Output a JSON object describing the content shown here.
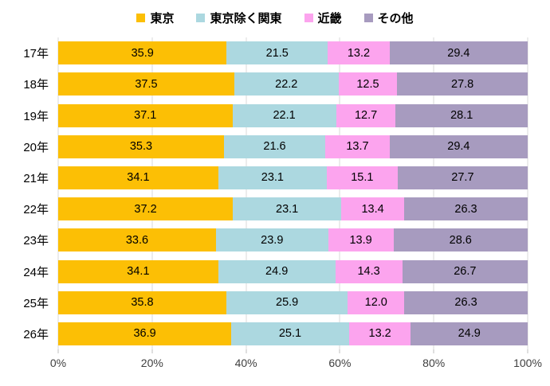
{
  "chart_data": {
    "type": "bar",
    "orientation": "horizontal",
    "stacked": true,
    "unit": "%",
    "categories": [
      "17年",
      "18年",
      "19年",
      "20年",
      "21年",
      "22年",
      "23年",
      "24年",
      "25年",
      "26年"
    ],
    "series": [
      {
        "name": "東京",
        "color": "#FCBF05",
        "values": [
          35.9,
          37.5,
          37.1,
          35.3,
          34.1,
          37.2,
          33.6,
          34.1,
          35.8,
          36.9
        ]
      },
      {
        "name": "東京除く関東",
        "color": "#ACD8E0",
        "values": [
          21.5,
          22.2,
          22.1,
          21.6,
          23.1,
          23.1,
          23.9,
          24.9,
          25.9,
          25.1
        ]
      },
      {
        "name": "近畿",
        "color": "#FCA4EE",
        "values": [
          13.2,
          12.5,
          12.7,
          13.7,
          15.1,
          13.4,
          13.9,
          14.3,
          12.0,
          13.2
        ]
      },
      {
        "name": "その他",
        "color": "#A79BBF",
        "values": [
          29.4,
          27.8,
          28.1,
          29.4,
          27.7,
          26.3,
          28.6,
          26.7,
          26.3,
          24.9
        ]
      }
    ],
    "x_ticks": [
      "0%",
      "20%",
      "40%",
      "60%",
      "80%",
      "100%"
    ],
    "x_tick_values": [
      0,
      20,
      40,
      60,
      80,
      100
    ],
    "xlim": [
      0,
      100
    ],
    "value_label_decimals": 1,
    "legend_position": "top",
    "grid": true
  },
  "styles": {
    "grid_color": "#D9D9D9",
    "tick_color": "#BFBFBF",
    "axis_text_color": "#3F3F3F",
    "label_color": "#000000",
    "background": "#FFFFFF"
  }
}
